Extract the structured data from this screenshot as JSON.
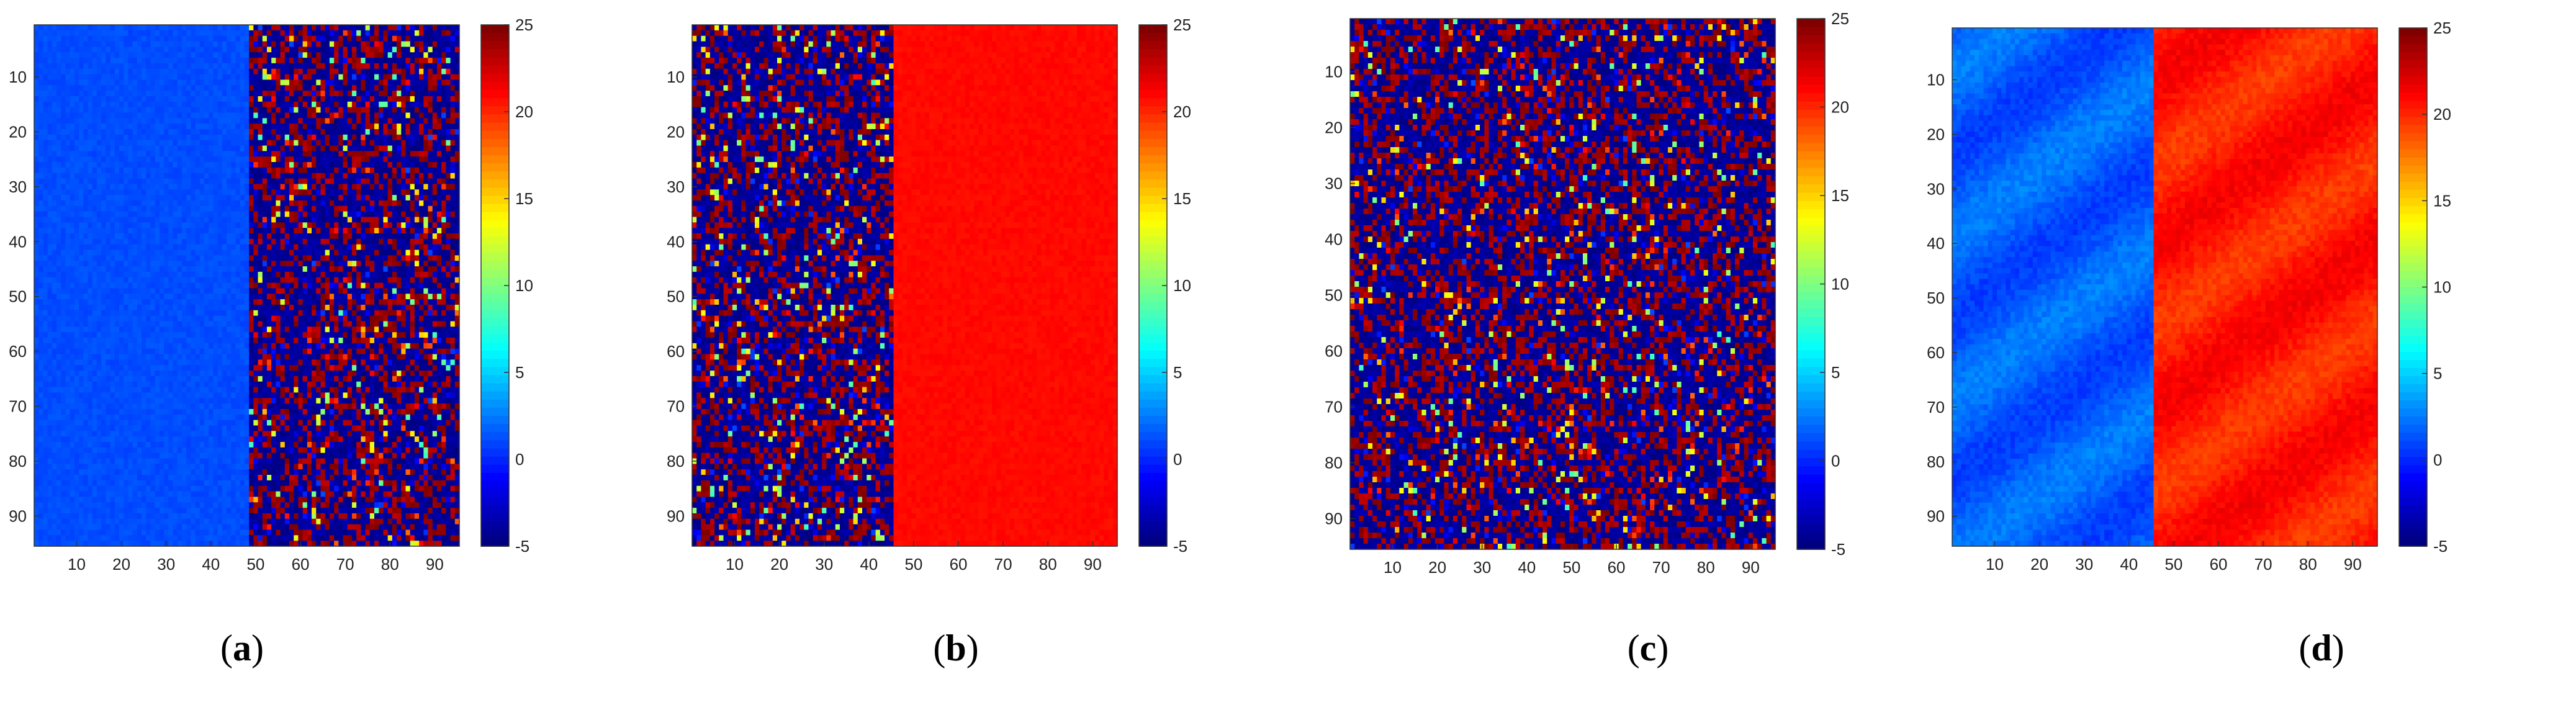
{
  "chart_data": [
    {
      "type": "heatmap",
      "caption": "a",
      "grid_size": 95,
      "xticks": [
        10,
        20,
        30,
        40,
        50,
        60,
        70,
        80,
        90
      ],
      "yticks": [
        10,
        20,
        30,
        40,
        50,
        60,
        70,
        80,
        90
      ],
      "colorbar": {
        "min": -5,
        "max": 25,
        "ticks": [
          -5,
          0,
          5,
          10,
          15,
          20,
          25
        ]
      },
      "regions": [
        {
          "x_range": [
            1,
            48
          ],
          "pattern": "uniform",
          "mean": 1,
          "spread": 0.8
        },
        {
          "x_range": [
            49,
            95
          ],
          "pattern": "speckle",
          "mean": 22,
          "spread": 30
        }
      ]
    },
    {
      "type": "heatmap",
      "caption": "b",
      "grid_size": 95,
      "xticks": [
        10,
        20,
        30,
        40,
        50,
        60,
        70,
        80,
        90
      ],
      "yticks": [
        10,
        20,
        30,
        40,
        50,
        60,
        70,
        80,
        90
      ],
      "colorbar": {
        "min": -5,
        "max": 25,
        "ticks": [
          -5,
          0,
          5,
          10,
          15,
          20,
          25
        ]
      },
      "regions": [
        {
          "x_range": [
            1,
            45
          ],
          "pattern": "speckle",
          "mean": 5,
          "spread": 30
        },
        {
          "x_range": [
            46,
            95
          ],
          "pattern": "uniform",
          "mean": 21,
          "spread": 0.6
        }
      ]
    },
    {
      "type": "heatmap",
      "caption": "c",
      "grid_size": 95,
      "xticks": [
        10,
        20,
        30,
        40,
        50,
        60,
        70,
        80,
        90
      ],
      "yticks": [
        10,
        20,
        30,
        40,
        50,
        60,
        70,
        80,
        90
      ],
      "colorbar": {
        "min": -5,
        "max": 25,
        "ticks": [
          -5,
          0,
          5,
          10,
          15,
          20,
          25
        ]
      },
      "regions": [
        {
          "x_range": [
            1,
            95
          ],
          "pattern": "speckle",
          "mean": 5,
          "spread": 30
        }
      ]
    },
    {
      "type": "heatmap",
      "caption": "d",
      "grid_size": 95,
      "xticks": [
        10,
        20,
        30,
        40,
        50,
        60,
        70,
        80,
        90
      ],
      "yticks": [
        10,
        20,
        30,
        40,
        50,
        60,
        70,
        80,
        90
      ],
      "colorbar": {
        "min": -5,
        "max": 25,
        "ticks": [
          -5,
          0,
          5,
          10,
          15,
          20,
          25
        ]
      },
      "regions": [
        {
          "x_range": [
            1,
            45
          ],
          "pattern": "smooth",
          "mean": 1.5,
          "spread": 2
        },
        {
          "x_range": [
            46,
            95
          ],
          "pattern": "smooth",
          "mean": 20.5,
          "spread": 2
        }
      ]
    }
  ]
}
